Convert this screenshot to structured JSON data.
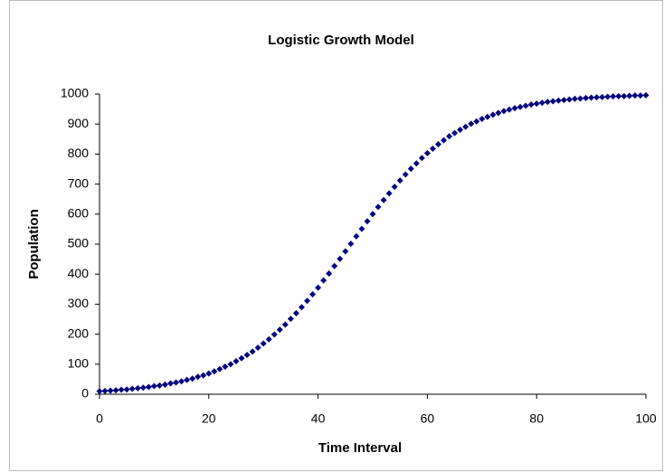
{
  "chart_data": {
    "type": "scatter",
    "title": "Logistic Growth Model",
    "x_label": "Time Interval",
    "y_label": "Population",
    "series": [
      {
        "name": "Population",
        "color": "#000080",
        "x": [
          0,
          1,
          2,
          3,
          4,
          5,
          6,
          7,
          8,
          9,
          10,
          11,
          12,
          13,
          14,
          15,
          16,
          17,
          18,
          19,
          20,
          21,
          22,
          23,
          24,
          25,
          26,
          27,
          28,
          29,
          30,
          31,
          32,
          33,
          34,
          35,
          36,
          37,
          38,
          39,
          40,
          41,
          42,
          43,
          44,
          45,
          46,
          47,
          48,
          49,
          50,
          51,
          52,
          53,
          54,
          55,
          56,
          57,
          58,
          59,
          60,
          61,
          62,
          63,
          64,
          65,
          66,
          67,
          68,
          69,
          70,
          71,
          72,
          73,
          74,
          75,
          76,
          77,
          78,
          79,
          80,
          81,
          82,
          83,
          84,
          85,
          86,
          87,
          88,
          89,
          90,
          91,
          92,
          93,
          94,
          95,
          96,
          97,
          98,
          99,
          100
        ],
        "values": [
          10,
          11,
          12,
          13,
          15,
          16,
          18,
          20,
          22,
          24,
          27,
          29,
          32,
          36,
          39,
          43,
          48,
          52,
          58,
          63,
          69,
          76,
          84,
          92,
          100,
          110,
          120,
          131,
          142,
          155,
          169,
          183,
          199,
          215,
          232,
          251,
          270,
          290,
          311,
          333,
          355,
          379,
          402,
          427,
          451,
          476,
          501,
          526,
          551,
          576,
          600,
          624,
          647,
          669,
          691,
          712,
          732,
          751,
          769,
          787,
          803,
          818,
          833,
          846,
          859,
          870,
          881,
          891,
          901,
          909,
          917,
          924,
          931,
          937,
          943,
          948,
          953,
          957,
          961,
          965,
          968,
          971,
          974,
          976,
          978,
          980,
          982,
          984,
          985,
          987,
          988,
          989,
          990,
          991,
          992,
          993,
          993,
          994,
          995,
          995,
          996
        ]
      }
    ],
    "xlim": [
      0,
      100
    ],
    "xticks": [
      0,
      20,
      40,
      60,
      80,
      100
    ],
    "ylim": [
      0,
      1000
    ],
    "yticks": [
      0,
      100,
      200,
      300,
      400,
      500,
      600,
      700,
      800,
      900,
      1000
    ],
    "grid": false
  }
}
